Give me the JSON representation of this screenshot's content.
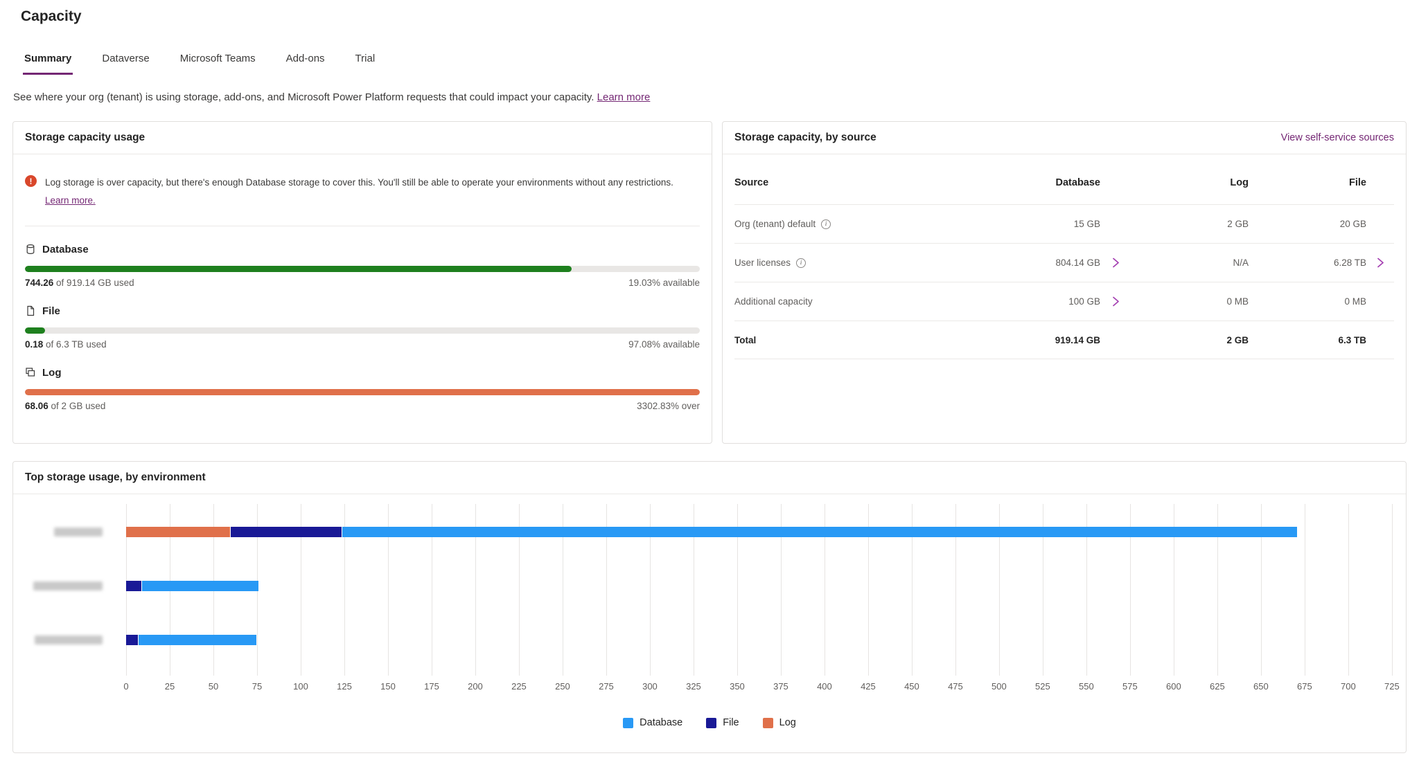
{
  "page": {
    "title": "Capacity"
  },
  "tabs": [
    {
      "label": "Summary",
      "active": true
    },
    {
      "label": "Dataverse",
      "active": false
    },
    {
      "label": "Microsoft Teams",
      "active": false
    },
    {
      "label": "Add-ons",
      "active": false
    },
    {
      "label": "Trial",
      "active": false
    }
  ],
  "description": {
    "text": "See where your org (tenant) is using storage, add-ons, and Microsoft Power Platform requests that could impact your capacity.",
    "link_label": "Learn more"
  },
  "usage_card": {
    "title": "Storage capacity usage",
    "warning": {
      "text": "Log storage is over capacity, but there's enough Database storage to cover this. You'll still be able to operate your environments without any restrictions.",
      "link_label": "Learn more."
    },
    "meters": [
      {
        "name": "Database",
        "icon": "database-icon",
        "used_bold": "744.26",
        "used_rest": " of 919.14 GB used",
        "right_text": "19.03% available",
        "percent": 81,
        "fill_color": "#1e801e"
      },
      {
        "name": "File",
        "icon": "file-icon",
        "used_bold": "0.18",
        "used_rest": " of 6.3 TB used",
        "right_text": "97.08% available",
        "percent": 3,
        "fill_color": "#1e801e"
      },
      {
        "name": "Log",
        "icon": "log-icon",
        "used_bold": "68.06",
        "used_rest": " of 2 GB used",
        "right_text": "3302.83% over",
        "percent": 100,
        "fill_color": "#e0704a"
      }
    ]
  },
  "source_card": {
    "title": "Storage capacity, by source",
    "link_label": "View self-service sources",
    "columns": [
      "Source",
      "Database",
      "Log",
      "File"
    ],
    "rows": [
      {
        "source": "Org (tenant) default",
        "info": true,
        "database": "15 GB",
        "db_chevron": false,
        "log": "2 GB",
        "file": "20 GB",
        "file_chevron": false,
        "total": false
      },
      {
        "source": "User licenses",
        "info": true,
        "database": "804.14 GB",
        "db_chevron": true,
        "log": "N/A",
        "file": "6.28 TB",
        "file_chevron": true,
        "total": false
      },
      {
        "source": "Additional capacity",
        "info": false,
        "database": "100 GB",
        "db_chevron": true,
        "log": "0 MB",
        "file": "0 MB",
        "file_chevron": false,
        "total": false
      },
      {
        "source": "Total",
        "info": false,
        "database": "919.14 GB",
        "db_chevron": false,
        "log": "2 GB",
        "file": "6.3 TB",
        "file_chevron": false,
        "total": true
      }
    ]
  },
  "chart_card": {
    "title": "Top storage usage, by environment"
  },
  "chart_data": {
    "type": "bar",
    "orientation": "horizontal",
    "stacked": true,
    "title": "Top storage usage, by environment",
    "categories": [
      "[blurred]",
      "[blurred]",
      "[blurred]"
    ],
    "series": [
      {
        "name": "Log",
        "color": "#e0704a",
        "values": [
          60,
          0,
          0
        ]
      },
      {
        "name": "File",
        "color": "#191996",
        "values": [
          64,
          9,
          7
        ]
      },
      {
        "name": "Database",
        "color": "#2899f5",
        "values": [
          547,
          67,
          68
        ]
      }
    ],
    "legend": [
      {
        "label": "Database",
        "color": "#2899f5"
      },
      {
        "label": "File",
        "color": "#191996"
      },
      {
        "label": "Log",
        "color": "#e0704a"
      }
    ],
    "legend_position": "bottom",
    "grid": true,
    "xlim": [
      0,
      725
    ],
    "x_ticks": [
      0,
      25,
      50,
      75,
      100,
      125,
      150,
      175,
      200,
      225,
      250,
      275,
      300,
      325,
      350,
      375,
      400,
      425,
      450,
      475,
      500,
      525,
      550,
      575,
      600,
      625,
      650,
      675,
      700,
      725
    ]
  },
  "colors": {
    "accent_purple": "#742774",
    "chevron_purple": "#a43fb1",
    "warning": "#d9472b",
    "green": "#1e801e",
    "orange": "#e0704a"
  }
}
